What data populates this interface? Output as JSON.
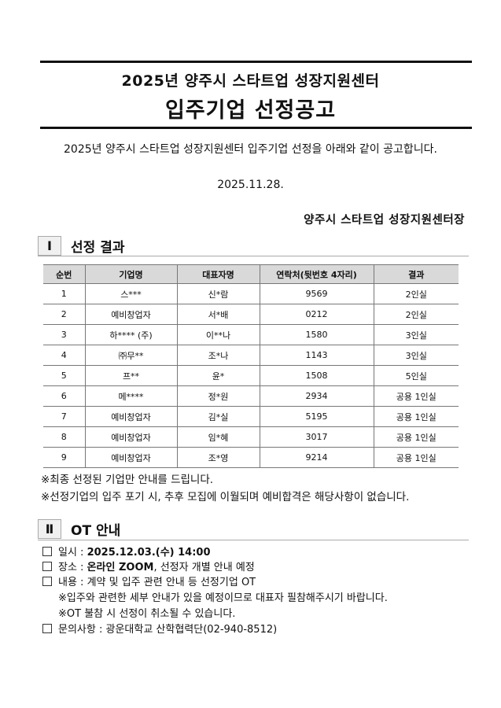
{
  "header": {
    "title_line1": "2025년 양주시 스타트업 성장지원센터",
    "title_line2": "입주기업 선정공고"
  },
  "intro": "2025년 양주시 스타트업 성장지원센터 입주기업 선정을 아래와 같이 공고합니다.",
  "date": "2025.11.28.",
  "signer": "양주시 스타트업 성장지원센터장",
  "section1": {
    "number": "Ⅰ",
    "title": "선정 결과",
    "table": {
      "headers": [
        "순번",
        "기업명",
        "대표자명",
        "연락처(뒷번호 4자리)",
        "결과"
      ],
      "rows": [
        [
          "1",
          "스***",
          "신*람",
          "9569",
          "2인실"
        ],
        [
          "2",
          "예비창업자",
          "서*배",
          "0212",
          "2인실"
        ],
        [
          "3",
          "하**** (주)",
          "이**나",
          "1580",
          "3인실"
        ],
        [
          "4",
          "㈜무**",
          "조*나",
          "1143",
          "3인실"
        ],
        [
          "5",
          "프**",
          "윤*",
          "1508",
          "5인실"
        ],
        [
          "6",
          "메****",
          "정*원",
          "2934",
          "공용 1인실"
        ],
        [
          "7",
          "예비창업자",
          "김*실",
          "5195",
          "공용 1인실"
        ],
        [
          "8",
          "예비창업자",
          "임*혜",
          "3017",
          "공용 1인실"
        ],
        [
          "9",
          "예비창업자",
          "조*영",
          "9214",
          "공용 1인실"
        ]
      ]
    },
    "notes": [
      "※최종 선정된 기업만 안내를 드립니다.",
      "※선정기업의 입주 포기 시, 추후 모집에 이월되며 예비합격은 해당사항이 없습니다."
    ]
  },
  "section2": {
    "number": "Ⅱ",
    "title": "OT 안내",
    "items": [
      {
        "label": "일시 : ",
        "bold": "2025.12.03.(수) 14:00",
        "rest": ""
      },
      {
        "label": "장소 : ",
        "bold": "온라인 ZOOM",
        "rest": ", 선정자 개별 안내 예정"
      },
      {
        "label": "내용 : ",
        "bold": "",
        "rest": "계약 및 입주 관련 안내 등 선정기업 OT"
      },
      {
        "label": "문의사항 : ",
        "bold": "",
        "rest": "광운대학교 산학협력단(02-940-8512)"
      }
    ],
    "sub_notes": [
      "※입주와 관련한 세부 안내가 있을 예정이므로 대표자 필참해주시기 바랍니다.",
      "※OT 불참 시 선정이 취소될 수 있습니다."
    ]
  }
}
